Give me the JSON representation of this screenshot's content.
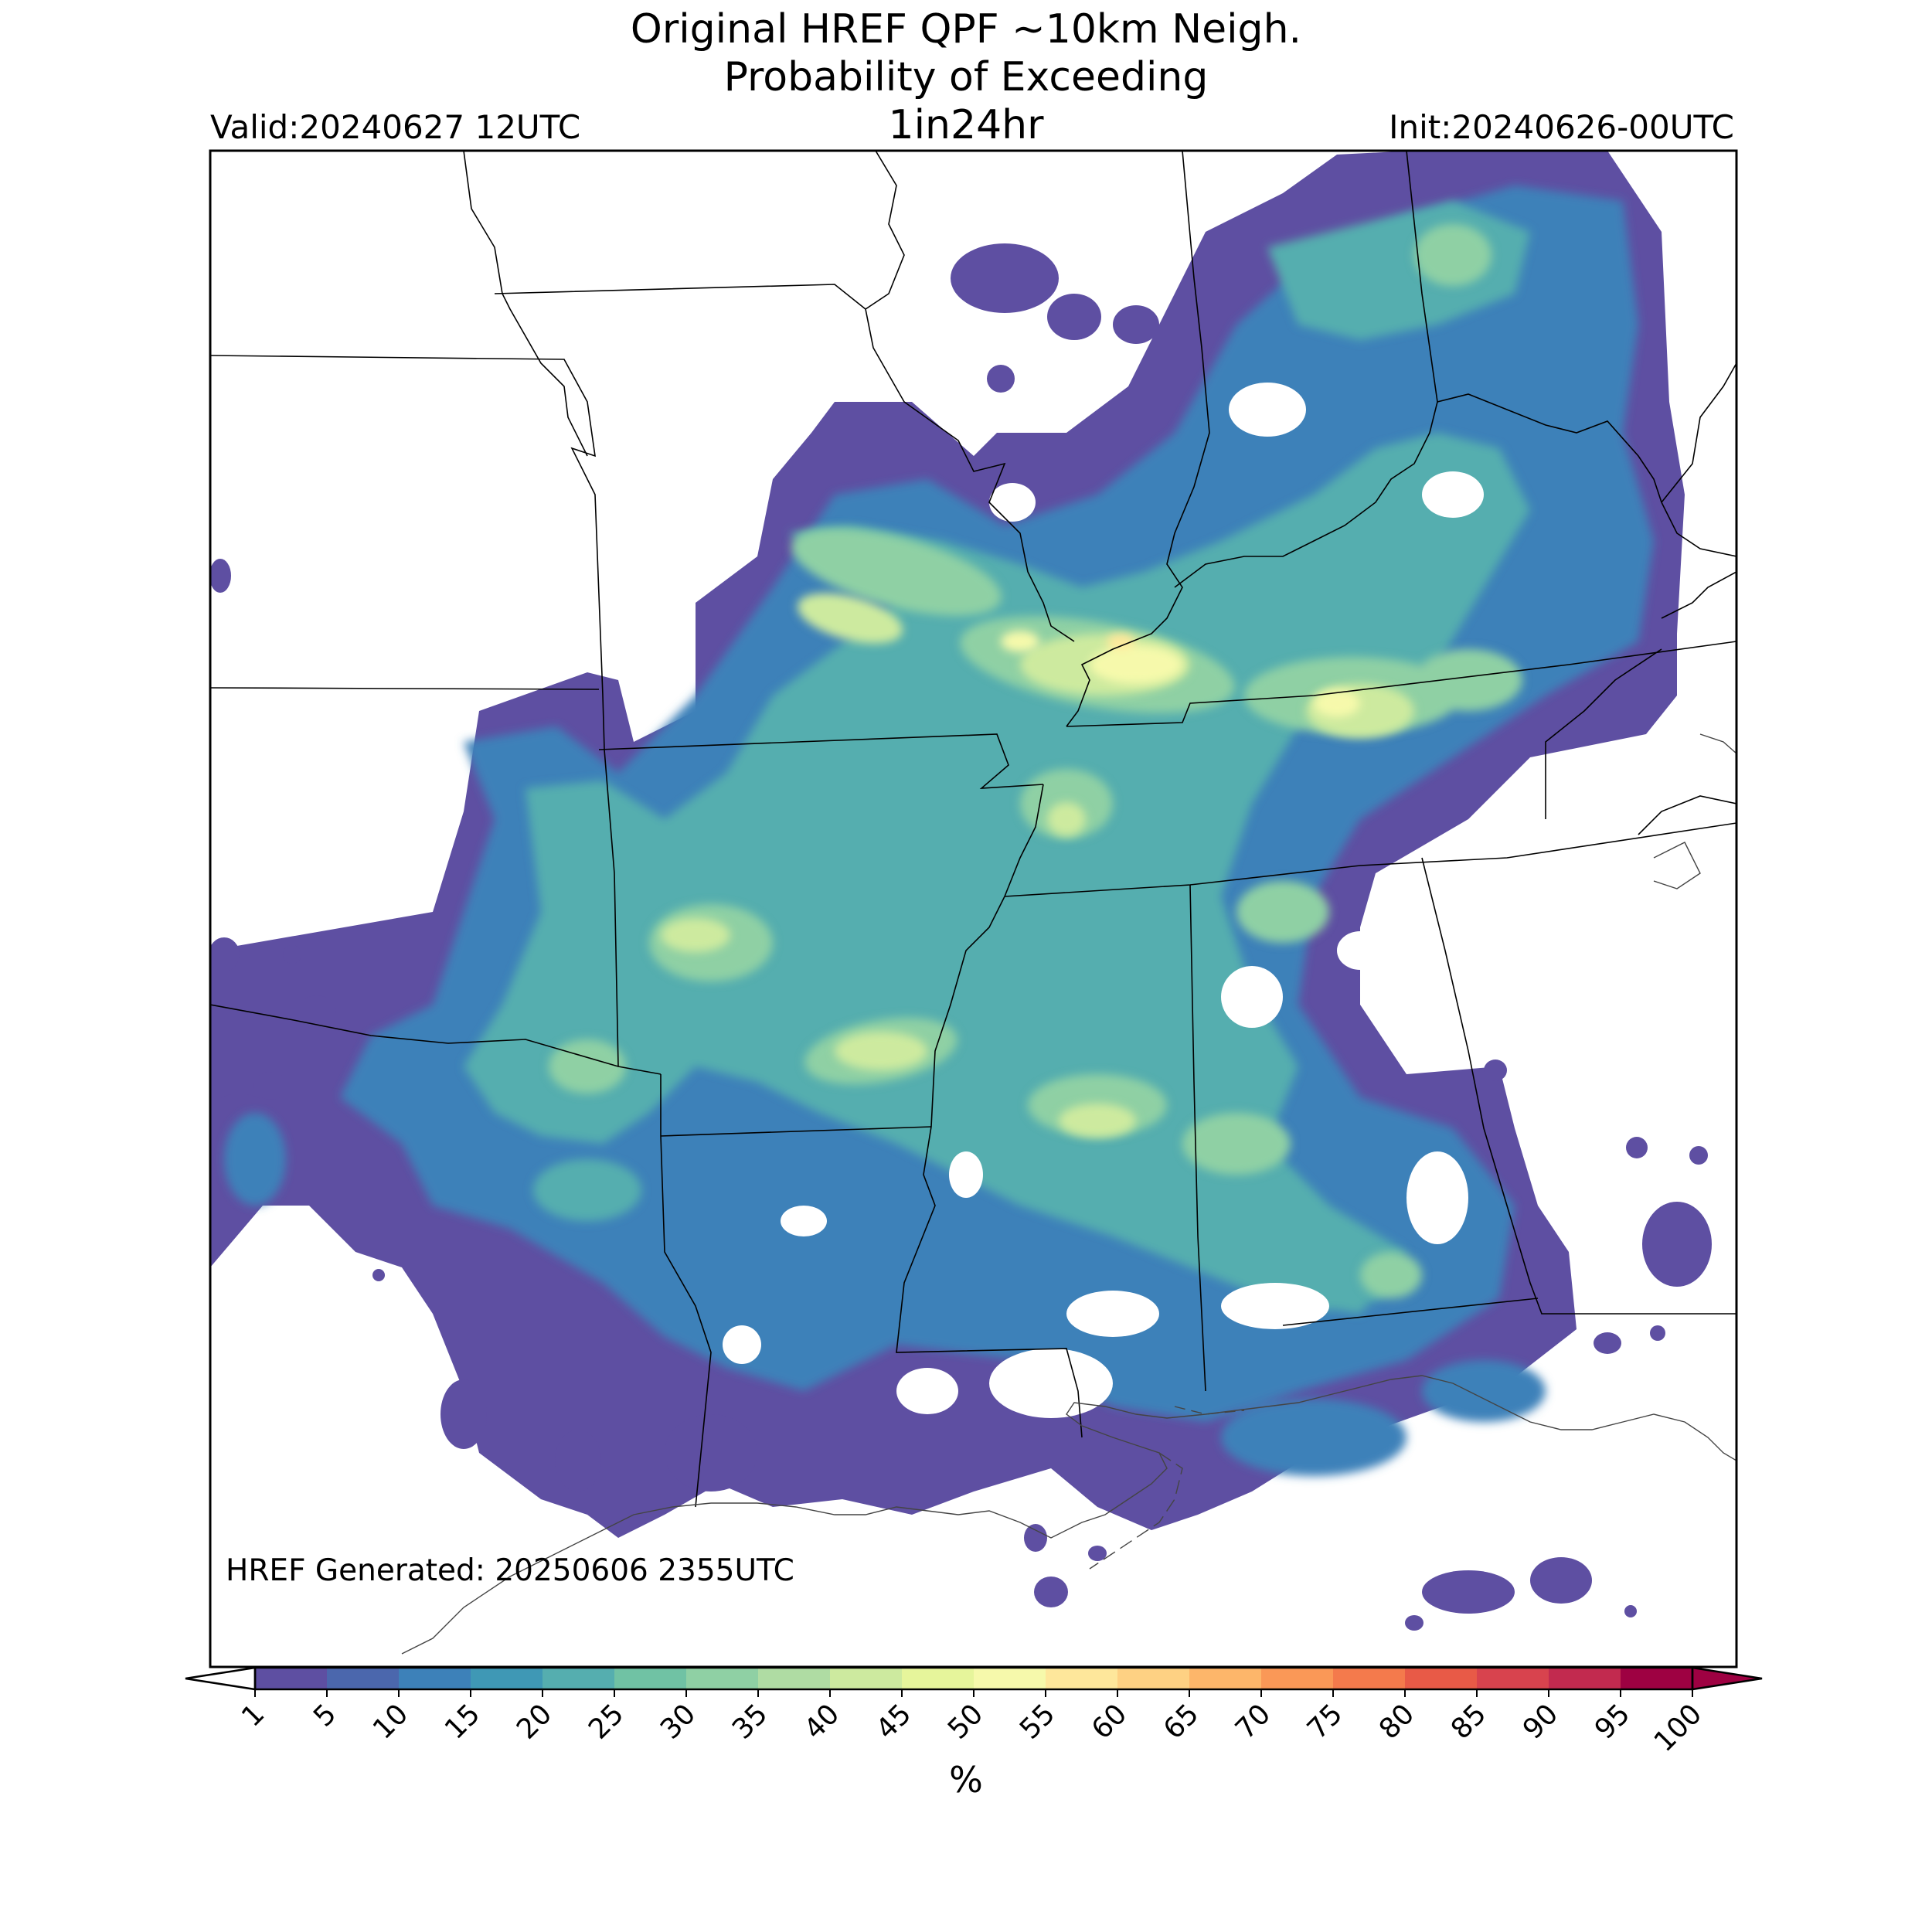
{
  "header": {
    "title_line1": "Original HREF QPF ~10km Neigh.",
    "title_line2": "Probability of Exceeding",
    "title_line3": "1in24hr",
    "valid": "Valid:20240627 12UTC",
    "init": "Init:20240626-00UTC"
  },
  "footer": {
    "generated": "HREF Generated: 20250606 2355UTC"
  },
  "colorbar": {
    "units": "%",
    "ticks": [
      "1",
      "5",
      "10",
      "15",
      "20",
      "25",
      "30",
      "35",
      "40",
      "45",
      "50",
      "55",
      "60",
      "65",
      "70",
      "75",
      "80",
      "85",
      "90",
      "95",
      "100"
    ],
    "colors": [
      "#5e4fa2",
      "#4b67ad",
      "#3d81b9",
      "#3f98b5",
      "#55aeaf",
      "#70c2a4",
      "#8fd0a4",
      "#afdca3",
      "#cdea9f",
      "#e6f59b",
      "#f6f9ab",
      "#fee79b",
      "#fed183",
      "#fdb66a",
      "#fa9857",
      "#f47a4c",
      "#e85a47",
      "#d8434e",
      "#c22a4f",
      "#9e0142"
    ],
    "under_color": "#ffffff",
    "over_color": "#9e0142"
  },
  "map": {
    "region": "Lower Mississippi Valley / Mid-South / Gulf Coast",
    "colors": {
      "p1": "#5e4fa2",
      "p10": "#3d81b9",
      "p20": "#55aeaf",
      "p30": "#8fd0a4",
      "p40": "#cdea9f",
      "p50": "#f6f9ab",
      "p55": "#fee79b"
    }
  }
}
